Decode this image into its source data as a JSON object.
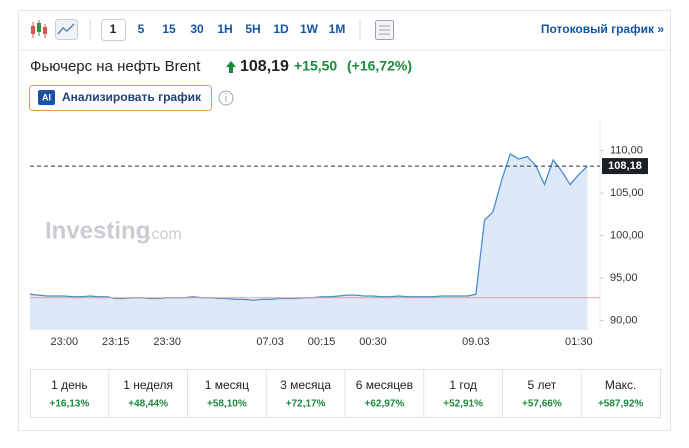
{
  "toolbar": {
    "intervals": [
      "1",
      "5",
      "15",
      "30",
      "1H",
      "5H",
      "1D",
      "1W",
      "1M"
    ],
    "stream_link": "Потоковый график »"
  },
  "header": {
    "title": "Фьючерс на нефть Brent",
    "price": "108,19",
    "change": "+15,50",
    "change_pct": "(+16,72%)"
  },
  "ai_button": {
    "badge": "AI",
    "label": "Анализировать график"
  },
  "chart_data": {
    "type": "area",
    "watermark": {
      "main": "Investing",
      "suffix": ".com"
    },
    "categories": [
      null,
      null,
      null,
      null,
      "23:00",
      null,
      null,
      null,
      null,
      null,
      "23:15",
      null,
      null,
      null,
      null,
      null,
      "23:30",
      null,
      null,
      null,
      null,
      null,
      null,
      null,
      null,
      null,
      null,
      null,
      "07.03",
      null,
      null,
      null,
      null,
      null,
      "00:15",
      null,
      null,
      null,
      null,
      null,
      "00:30",
      null,
      null,
      null,
      null,
      null,
      null,
      null,
      null,
      null,
      null,
      null,
      "09.03",
      null,
      null,
      null,
      null,
      null,
      null,
      null,
      null,
      null,
      null,
      null,
      "01:30",
      null
    ],
    "series": [
      {
        "name": "Brent",
        "color": "#4a8fcf",
        "fill": "#dde9f7",
        "values": [
          93.1,
          93.0,
          92.9,
          92.9,
          92.9,
          92.8,
          92.8,
          92.9,
          92.8,
          92.8,
          92.6,
          92.6,
          92.7,
          92.7,
          92.6,
          92.6,
          92.7,
          92.7,
          92.7,
          92.8,
          92.7,
          92.7,
          92.6,
          92.6,
          92.5,
          92.5,
          92.4,
          92.5,
          92.5,
          92.6,
          92.6,
          92.6,
          92.7,
          92.7,
          92.8,
          92.8,
          92.9,
          93.0,
          93.0,
          92.9,
          92.9,
          92.8,
          92.8,
          92.9,
          92.8,
          92.8,
          92.8,
          92.8,
          92.9,
          92.9,
          92.9,
          92.9,
          93.1,
          101.8,
          102.8,
          106.5,
          109.6,
          109.0,
          109.3,
          108.2,
          106.0,
          108.9,
          107.6,
          106.0,
          107.2,
          108.18
        ]
      }
    ],
    "previous_close": 92.69,
    "last_value": {
      "value": 108.18,
      "label": "108,18"
    },
    "ylim": [
      88.9,
      113.6
    ],
    "yticks": [
      {
        "value": 90,
        "label": "90,00"
      },
      {
        "value": 95,
        "label": "95,00"
      },
      {
        "value": 100,
        "label": "100,00"
      },
      {
        "value": 105,
        "label": "105,00"
      },
      {
        "value": 110,
        "label": "110,00"
      }
    ]
  },
  "performance": [
    {
      "period": "1 день",
      "change": "+16,13%"
    },
    {
      "period": "1 неделя",
      "change": "+48,44%"
    },
    {
      "period": "1 месяц",
      "change": "+58,10%"
    },
    {
      "period": "3 месяца",
      "change": "+72,17%"
    },
    {
      "period": "6 месяцев",
      "change": "+62,97%"
    },
    {
      "period": "1 год",
      "change": "+52,91%"
    },
    {
      "period": "5 лет",
      "change": "+57,66%"
    },
    {
      "period": "Макс.",
      "change": "+587,92%"
    }
  ]
}
